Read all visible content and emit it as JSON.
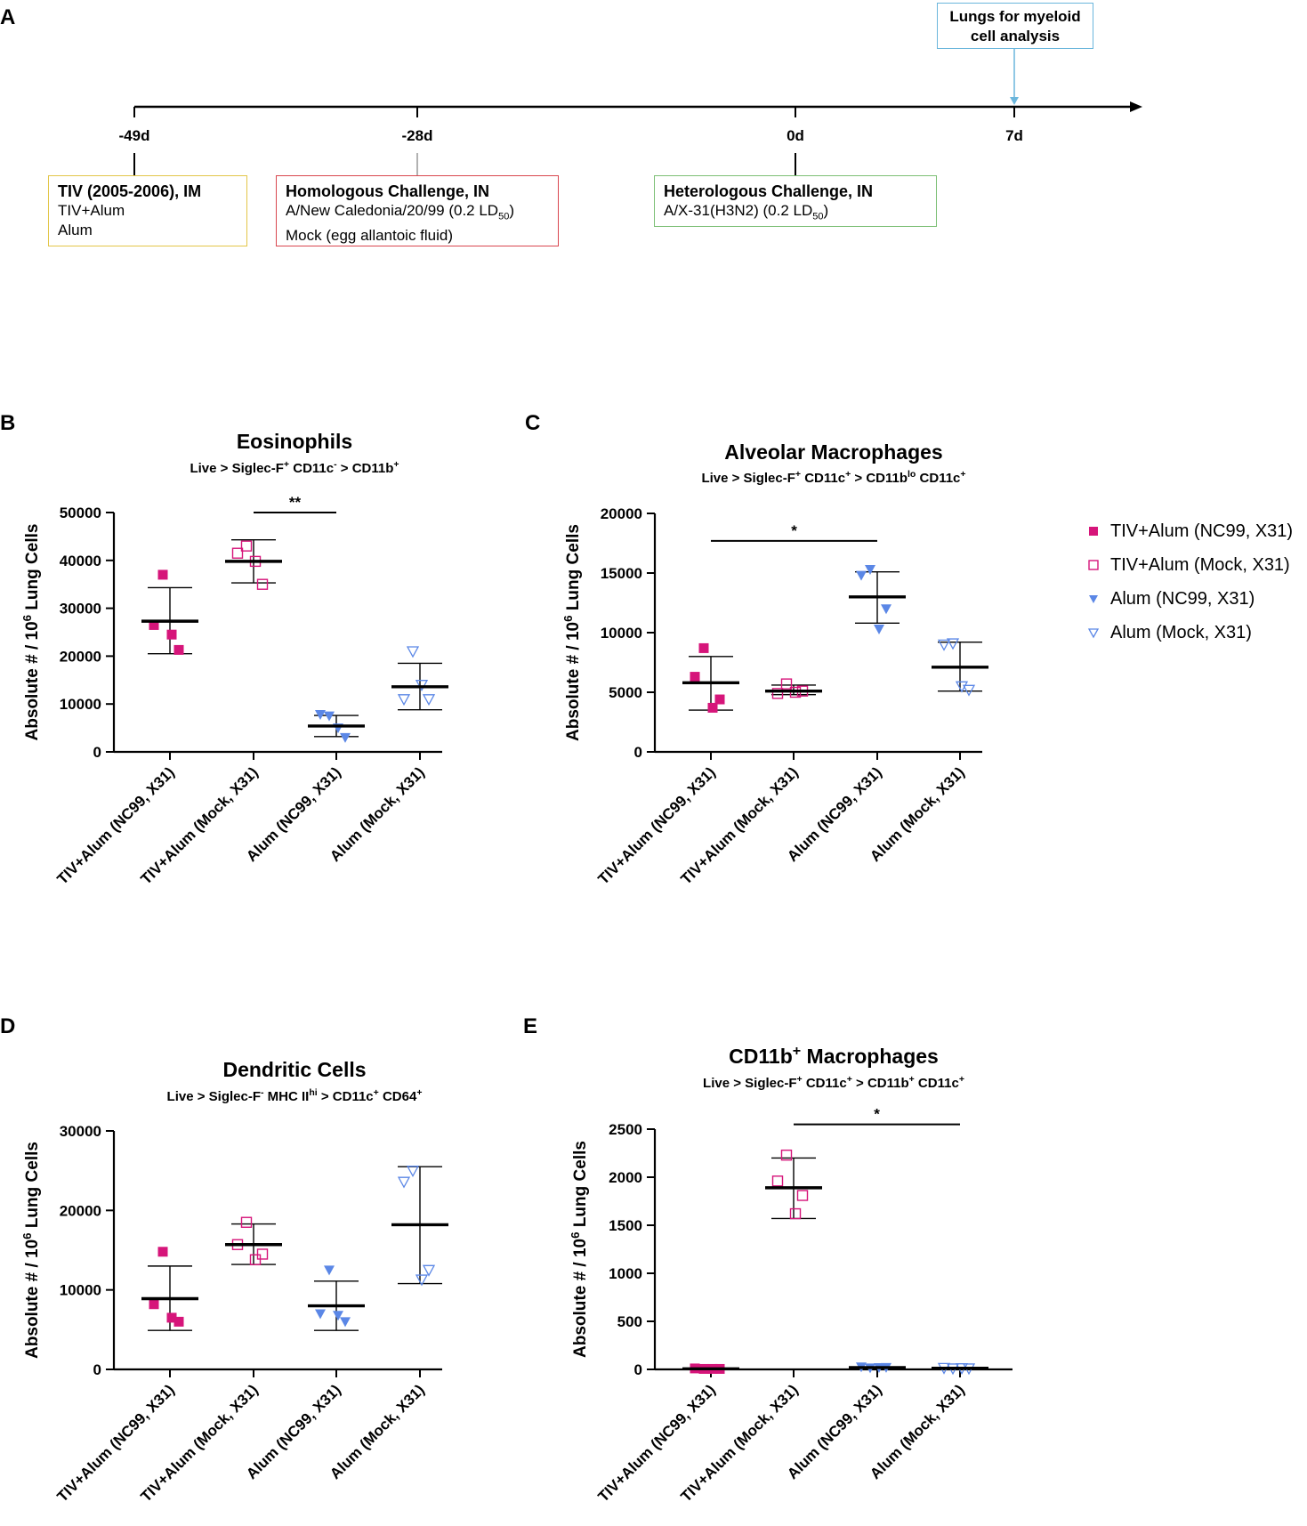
{
  "panel_letters": {
    "A": "A",
    "B": "B",
    "C": "C",
    "D": "D",
    "E": "E"
  },
  "colors": {
    "magenta": "#d6157a",
    "blue": "#5b87e6",
    "light_blue": "#6bb6dc",
    "yellow": "#e3c649",
    "red": "#d9474f",
    "green": "#7cbf75"
  },
  "timeline": {
    "days": [
      "-49d",
      "-28d",
      "0d",
      "7d"
    ],
    "callout_line1": "Lungs for myeloid",
    "callout_line2": "cell analysis",
    "box1": {
      "title": "TIV (2005-2006), IM",
      "line1": "TIV+Alum",
      "line2": "Alum"
    },
    "box2": {
      "title": "Homologous Challenge, IN",
      "line1": "A/New Caledonia/20/99 (0.2 LD",
      "line1_sub": "50",
      "line1_end": ")",
      "line2": "Mock (egg allantoic fluid)"
    },
    "box3": {
      "title": "Heterologous Challenge, IN",
      "line1": "A/X-31(H3N2) (0.2 LD",
      "line1_sub": "50",
      "line1_end": ")"
    }
  },
  "legend": {
    "items": [
      "TIV+Alum (NC99, X31)",
      "TIV+Alum (Mock, X31)",
      "Alum (NC99, X31)",
      "Alum (Mock, X31)"
    ]
  },
  "chart_data": [
    {
      "id": "B",
      "type": "scatter",
      "title": "Eosinophils",
      "subtitle_parts": [
        [
          "Live > Siglec-F",
          ""
        ],
        [
          "+",
          "sup"
        ],
        [
          " CD11c",
          ""
        ],
        [
          "-",
          "sup"
        ],
        [
          " > CD11b",
          ""
        ],
        [
          "+",
          "sup"
        ]
      ],
      "ylabel": "Absolute # / 10^6 Lung Cells",
      "ylim": [
        0,
        50000
      ],
      "yticks": [
        "0",
        "10000",
        "20000",
        "30000",
        "40000",
        "50000"
      ],
      "categories": [
        "TIV+Alum (NC99, X31)",
        "TIV+Alum (Mock, X31)",
        "Alum (NC99, X31)",
        "Alum (Mock, X31)"
      ],
      "series": [
        {
          "name": "TIV+Alum (NC99, X31)",
          "values": [
            37000,
            26500,
            21300,
            24500
          ],
          "mean": 27300,
          "sd_low": 20500,
          "sd_high": 34300
        },
        {
          "name": "TIV+Alum (Mock, X31)",
          "values": [
            43000,
            41500,
            35000,
            39800
          ],
          "mean": 39800,
          "sd_low": 35300,
          "sd_high": 44300
        },
        {
          "name": "Alum (NC99, X31)",
          "values": [
            7500,
            7800,
            3000,
            5000
          ],
          "mean": 5400,
          "sd_low": 3200,
          "sd_high": 7600
        },
        {
          "name": "Alum (Mock, X31)",
          "values": [
            21000,
            11000,
            11000,
            14000
          ],
          "mean": 13600,
          "sd_low": 8800,
          "sd_high": 18500
        }
      ],
      "significance": [
        {
          "from": 1,
          "to": 2,
          "label": "**",
          "y": 50000
        }
      ]
    },
    {
      "id": "C",
      "type": "scatter",
      "title": "Alveolar Macrophages",
      "subtitle_parts": [
        [
          "Live > Siglec-F",
          ""
        ],
        [
          "+",
          "sup"
        ],
        [
          " CD11c",
          ""
        ],
        [
          "+",
          "sup"
        ],
        [
          " > CD11b",
          ""
        ],
        [
          "lo",
          "sup"
        ],
        [
          " CD11c",
          ""
        ],
        [
          "+",
          "sup"
        ]
      ],
      "ylabel": "Absolute # / 10^6 Lung Cells",
      "ylim": [
        0,
        20000
      ],
      "yticks": [
        "0",
        "5000",
        "10000",
        "15000",
        "20000"
      ],
      "categories": [
        "TIV+Alum (NC99, X31)",
        "TIV+Alum (Mock, X31)",
        "Alum (NC99, X31)",
        "Alum (Mock, X31)"
      ],
      "series": [
        {
          "name": "TIV+Alum (NC99, X31)",
          "values": [
            8700,
            6300,
            4400,
            3700
          ],
          "mean": 5800,
          "sd_low": 3500,
          "sd_high": 8000
        },
        {
          "name": "TIV+Alum (Mock, X31)",
          "values": [
            5700,
            4900,
            5100,
            5000
          ],
          "mean": 5100,
          "sd_low": 4800,
          "sd_high": 5600
        },
        {
          "name": "Alum (NC99, X31)",
          "values": [
            15300,
            14800,
            12000,
            10300
          ],
          "mean": 13000,
          "sd_low": 10800,
          "sd_high": 15100
        },
        {
          "name": "Alum (Mock, X31)",
          "values": [
            9100,
            9000,
            5200,
            5500
          ],
          "mean": 7100,
          "sd_low": 5100,
          "sd_high": 9200
        }
      ],
      "significance": [
        {
          "from": 0,
          "to": 2,
          "label": "*",
          "y": 17700
        }
      ]
    },
    {
      "id": "D",
      "type": "scatter",
      "title": "Dendritic Cells",
      "subtitle_parts": [
        [
          "Live > Siglec-F",
          ""
        ],
        [
          "-",
          "sup"
        ],
        [
          " MHC II",
          ""
        ],
        [
          "hi",
          "sup"
        ],
        [
          " > CD11c",
          ""
        ],
        [
          "+",
          "sup"
        ],
        [
          " CD64",
          ""
        ],
        [
          "+",
          "sup"
        ]
      ],
      "ylabel": "Absolute # / 10^6 Lung Cells",
      "ylim": [
        0,
        30000
      ],
      "yticks": [
        "0",
        "10000",
        "20000",
        "30000"
      ],
      "categories": [
        "TIV+Alum (NC99, X31)",
        "TIV+Alum (Mock, X31)",
        "Alum (NC99, X31)",
        "Alum (Mock, X31)"
      ],
      "series": [
        {
          "name": "TIV+Alum (NC99, X31)",
          "values": [
            14800,
            8200,
            6000,
            6500
          ],
          "mean": 8900,
          "sd_low": 4900,
          "sd_high": 13000
        },
        {
          "name": "TIV+Alum (Mock, X31)",
          "values": [
            18500,
            15700,
            14500,
            13800
          ],
          "mean": 15700,
          "sd_low": 13200,
          "sd_high": 18300
        },
        {
          "name": "Alum (NC99, X31)",
          "values": [
            12500,
            7000,
            6000,
            6800
          ],
          "mean": 8000,
          "sd_low": 4900,
          "sd_high": 11100
        },
        {
          "name": "Alum (Mock, X31)",
          "values": [
            25000,
            23600,
            12500,
            11300
          ],
          "mean": 18200,
          "sd_low": 10800,
          "sd_high": 25500
        }
      ],
      "significance": []
    },
    {
      "id": "E",
      "type": "scatter",
      "title_parts": [
        [
          "CD11b",
          ""
        ],
        [
          "+",
          "sup"
        ],
        [
          " Macrophages",
          ""
        ]
      ],
      "subtitle_parts": [
        [
          "Live > Siglec-F",
          ""
        ],
        [
          "+",
          "sup"
        ],
        [
          " CD11c",
          ""
        ],
        [
          "+",
          "sup"
        ],
        [
          " > CD11b",
          ""
        ],
        [
          "+",
          "sup"
        ],
        [
          " CD11c",
          ""
        ],
        [
          "+",
          "sup"
        ]
      ],
      "ylabel": "Absolute # / 10^6 Lung Cells",
      "ylim": [
        0,
        2500
      ],
      "yticks": [
        "0",
        "500",
        "1000",
        "1500",
        "2000",
        "2500"
      ],
      "categories": [
        "TIV+Alum (NC99, X31)",
        "TIV+Alum (Mock, X31)",
        "Alum (NC99, X31)",
        "Alum (Mock, X31)"
      ],
      "series": [
        {
          "name": "TIV+Alum (NC99, X31)",
          "values": [
            5,
            10,
            5,
            5
          ],
          "mean": 6,
          "sd_low": 3,
          "sd_high": 9
        },
        {
          "name": "TIV+Alum (Mock, X31)",
          "values": [
            2230,
            1960,
            1810,
            1620
          ],
          "mean": 1890,
          "sd_low": 1570,
          "sd_high": 2200
        },
        {
          "name": "Alum (NC99, X31)",
          "values": [
            15,
            25,
            20,
            18
          ],
          "mean": 19,
          "sd_low": 14,
          "sd_high": 24
        },
        {
          "name": "Alum (Mock, X31)",
          "values": [
            10,
            15,
            10,
            12
          ],
          "mean": 12,
          "sd_low": 9,
          "sd_high": 15
        }
      ],
      "significance": [
        {
          "from": 1,
          "to": 3,
          "label": "*",
          "y": 2550
        }
      ]
    }
  ]
}
